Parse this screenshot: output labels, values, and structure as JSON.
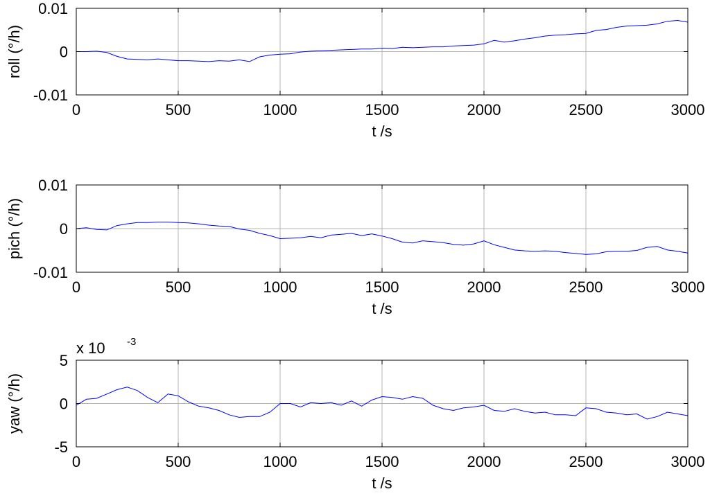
{
  "chart_data": [
    {
      "type": "line",
      "ylabel": "roll (°/h)",
      "xlabel": "t /s",
      "xlim": [
        0,
        3000
      ],
      "ylim": [
        -0.01,
        0.01
      ],
      "xticks": [
        "0",
        "500",
        "1000",
        "1500",
        "2000",
        "2500",
        "3000"
      ],
      "yticks": [
        "-0.01",
        "0",
        "0.01"
      ],
      "grid": true,
      "exponent": "",
      "color": "#0000ff",
      "series": [
        {
          "x": [
            0,
            50,
            100,
            150,
            200,
            250,
            300,
            350,
            400,
            450,
            500,
            550,
            600,
            650,
            700,
            750,
            800,
            850,
            900,
            950,
            1000,
            1050,
            1100,
            1150,
            1200,
            1250,
            1300,
            1350,
            1400,
            1450,
            1500,
            1550,
            1600,
            1650,
            1700,
            1750,
            1800,
            1850,
            1900,
            1950,
            2000,
            2050,
            2100,
            2150,
            2200,
            2250,
            2300,
            2350,
            2400,
            2450,
            2500,
            2550,
            2600,
            2650,
            2700,
            2750,
            2800,
            2850,
            2900,
            2950,
            3000
          ],
          "y": [
            0,
            0,
            0.0001,
            -0.0002,
            -0.0011,
            -0.0017,
            -0.0018,
            -0.0019,
            -0.0017,
            -0.0019,
            -0.0021,
            -0.0021,
            -0.0022,
            -0.0023,
            -0.0021,
            -0.0022,
            -0.0019,
            -0.0023,
            -0.0012,
            -0.0008,
            -0.0006,
            -0.0005,
            -0.0001,
            0.0001,
            0.0002,
            0.0003,
            0.0004,
            0.0005,
            0.0006,
            0.0006,
            0.0008,
            0.0007,
            0.001,
            0.0009,
            0.001,
            0.0011,
            0.0011,
            0.0013,
            0.0014,
            0.0015,
            0.0018,
            0.0026,
            0.0022,
            0.0025,
            0.0029,
            0.0032,
            0.0036,
            0.0038,
            0.0039,
            0.0041,
            0.0042,
            0.0049,
            0.0051,
            0.0056,
            0.0059,
            0.006,
            0.0061,
            0.0064,
            0.007,
            0.0072,
            0.0068
          ]
        }
      ]
    },
    {
      "type": "line",
      "ylabel": "pich (°/h)",
      "xlabel": "t /s",
      "xlim": [
        0,
        3000
      ],
      "ylim": [
        -0.01,
        0.01
      ],
      "xticks": [
        "0",
        "500",
        "1000",
        "1500",
        "2000",
        "2500",
        "3000"
      ],
      "yticks": [
        "-0.01",
        "0",
        "0.01"
      ],
      "grid": true,
      "exponent": "",
      "color": "#0000ff",
      "series": [
        {
          "x": [
            0,
            50,
            100,
            150,
            200,
            250,
            300,
            350,
            400,
            450,
            500,
            550,
            600,
            650,
            700,
            750,
            800,
            850,
            900,
            950,
            1000,
            1050,
            1100,
            1150,
            1200,
            1250,
            1300,
            1350,
            1400,
            1450,
            1500,
            1550,
            1600,
            1650,
            1700,
            1750,
            1800,
            1850,
            1900,
            1950,
            2000,
            2050,
            2100,
            2150,
            2200,
            2250,
            2300,
            2350,
            2400,
            2450,
            2500,
            2550,
            2600,
            2650,
            2700,
            2750,
            2800,
            2850,
            2900,
            2950,
            3000
          ],
          "y": [
            0,
            0.0002,
            -0.0002,
            -0.0003,
            0.0007,
            0.0011,
            0.0014,
            0.0014,
            0.0015,
            0.0015,
            0.0014,
            0.0013,
            0.0011,
            0.0008,
            0.0006,
            0.0005,
            -0.0001,
            -0.0004,
            -0.0011,
            -0.0016,
            -0.0023,
            -0.0022,
            -0.0021,
            -0.0018,
            -0.0021,
            -0.0015,
            -0.0013,
            -0.0011,
            -0.0016,
            -0.0012,
            -0.0017,
            -0.0023,
            -0.0031,
            -0.0033,
            -0.0028,
            -0.003,
            -0.0032,
            -0.0036,
            -0.0038,
            -0.0035,
            -0.0028,
            -0.0037,
            -0.0043,
            -0.0049,
            -0.0051,
            -0.0052,
            -0.0051,
            -0.0052,
            -0.0055,
            -0.0057,
            -0.0059,
            -0.0058,
            -0.0053,
            -0.0052,
            -0.0052,
            -0.005,
            -0.0043,
            -0.0041,
            -0.0049,
            -0.0052,
            -0.0056
          ]
        }
      ]
    },
    {
      "type": "line",
      "ylabel": "yaw (°/h)",
      "xlabel": "t /s",
      "xlim": [
        0,
        3000
      ],
      "ylim": [
        -5,
        5
      ],
      "xticks": [
        "0",
        "500",
        "1000",
        "1500",
        "2000",
        "2500",
        "3000"
      ],
      "yticks": [
        "-5",
        "0",
        "5"
      ],
      "grid": true,
      "exponent": "x 10",
      "exponent_power": "-3",
      "color": "#0000ff",
      "series": [
        {
          "x": [
            0,
            50,
            100,
            150,
            200,
            250,
            300,
            350,
            400,
            450,
            500,
            550,
            600,
            650,
            700,
            750,
            800,
            850,
            900,
            950,
            1000,
            1050,
            1100,
            1150,
            1200,
            1250,
            1300,
            1350,
            1400,
            1450,
            1500,
            1550,
            1600,
            1650,
            1700,
            1750,
            1800,
            1850,
            1900,
            1950,
            2000,
            2050,
            2100,
            2150,
            2200,
            2250,
            2300,
            2350,
            2400,
            2450,
            2500,
            2550,
            2600,
            2650,
            2700,
            2750,
            2800,
            2850,
            2900,
            2950,
            3000
          ],
          "y": [
            -0.2,
            0.5,
            0.6,
            1.1,
            1.6,
            1.9,
            1.5,
            0.7,
            0.1,
            1.1,
            0.9,
            0.2,
            -0.3,
            -0.5,
            -0.8,
            -1.3,
            -1.6,
            -1.5,
            -1.5,
            -1.0,
            0.0,
            0.0,
            -0.4,
            0.1,
            0.0,
            0.1,
            -0.2,
            0.3,
            -0.3,
            0.4,
            0.8,
            0.7,
            0.5,
            0.8,
            0.6,
            -0.2,
            -0.6,
            -0.8,
            -0.5,
            -0.4,
            -0.2,
            -0.8,
            -0.9,
            -0.6,
            -0.9,
            -1.1,
            -1.0,
            -1.3,
            -1.3,
            -1.4,
            -0.5,
            -0.6,
            -1.0,
            -1.1,
            -1.3,
            -1.2,
            -1.8,
            -1.5,
            -1.0,
            -1.2,
            -1.4
          ]
        }
      ]
    }
  ]
}
